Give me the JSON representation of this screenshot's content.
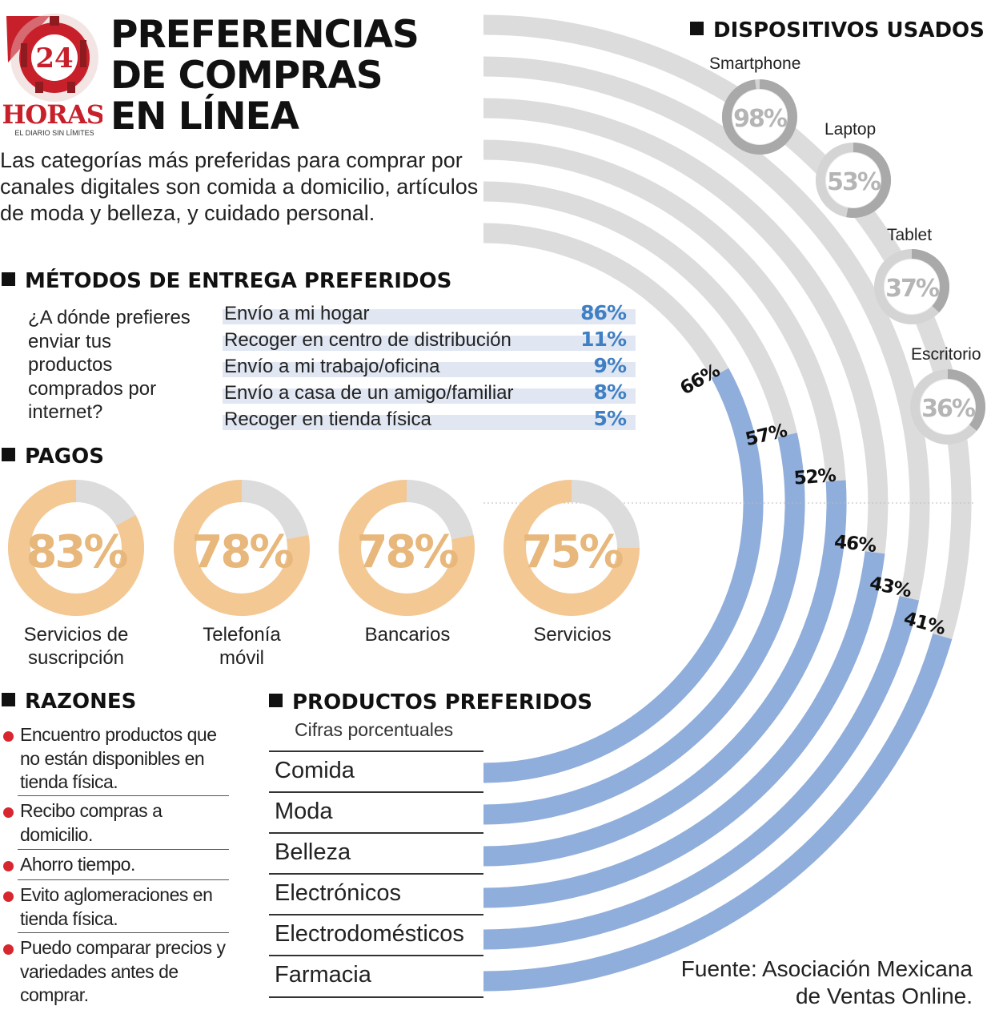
{
  "logo": {
    "number": "24",
    "name": "HORAS",
    "tagline": "EL DIARIO SIN LÍMITES"
  },
  "title": {
    "line1": "PREFERENCIAS",
    "line2": "DE COMPRAS",
    "line3": "EN LÍNEA"
  },
  "intro": "Las categorías más preferidas para comprar por canales digitales son comida a domicilio, artículos de moda y belleza, y cuidado personal.",
  "delivery": {
    "heading": "MÉTODOS DE ENTREGA PREFERIDOS",
    "question": "¿A dónde prefieres enviar tus productos comprados por internet?",
    "items": [
      {
        "label": "Envío a mi hogar",
        "value": "86%"
      },
      {
        "label": "Recoger en centro de distribución",
        "value": "11%"
      },
      {
        "label": "Envío a mi trabajo/oficina",
        "value": "9%"
      },
      {
        "label": "Envío a casa de un amigo/familiar",
        "value": "8%"
      },
      {
        "label": "Recoger en tienda física",
        "value": "5%"
      }
    ]
  },
  "payments": {
    "heading": "PAGOS",
    "items": [
      {
        "label_line1": "Servicios de",
        "label_line2": "suscripción",
        "text": "83%",
        "value": 83
      },
      {
        "label_line1": "Telefonía",
        "label_line2": "móvil",
        "text": "78%",
        "value": 78
      },
      {
        "label_line1": "Bancarios",
        "label_line2": "",
        "text": "78%",
        "value": 78
      },
      {
        "label_line1": "Servicios",
        "label_line2": "",
        "text": "75%",
        "value": 75
      }
    ]
  },
  "reasons": {
    "heading": "RAZONES",
    "items": [
      "Encuentro productos que no están disponibles en tienda física.",
      "Recibo compras a domicilio.",
      "Ahorro tiempo.",
      "Evito aglomeraciones en tienda física.",
      "Puedo comparar precios y variedades antes de comprar."
    ]
  },
  "products": {
    "heading": "PRODUCTOS PREFERIDOS",
    "subtitle": "Cifras porcentuales"
  },
  "devices": {
    "heading": "DISPOSITIVOS USADOS",
    "items": [
      {
        "label": "Smartphone",
        "text": "98%",
        "value": 98
      },
      {
        "label": "Laptop",
        "text": "53%",
        "value": 53
      },
      {
        "label": "Tablet",
        "text": "37%",
        "value": 37
      },
      {
        "label": "Escritorio",
        "text": "36%",
        "value": 36
      }
    ]
  },
  "source_line1": "Fuente: Asociación Mexicana",
  "source_line2": "de Ventas Online.",
  "colors": {
    "product_bar": "#8faedc",
    "track": "#dcdcdc",
    "payment_fill": "#f4c893",
    "payment_text": "#e7b77b",
    "delivery_value": "#3f7fc4",
    "device_ring": "#a9a9a9",
    "device_text": "#b5b5b5",
    "logo_red": "#c8202a"
  },
  "chart_data": [
    {
      "type": "bar",
      "title": "PRODUCTOS PREFERIDOS",
      "subtitle": "Cifras porcentuales",
      "categories": [
        "Comida",
        "Moda",
        "Belleza",
        "Electrónicos",
        "Electrodomésticos",
        "Farmacia"
      ],
      "values": [
        66,
        57,
        52,
        46,
        43,
        41
      ],
      "labels": [
        "66%",
        "57%",
        "52%",
        "46%",
        "43%",
        "41%"
      ],
      "ylim": [
        0,
        100
      ]
    },
    {
      "type": "bar",
      "title": "MÉTODOS DE ENTREGA PREFERIDOS",
      "categories": [
        "Envío a mi hogar",
        "Recoger en centro de distribución",
        "Envío a mi trabajo/oficina",
        "Envío a casa de un amigo/familiar",
        "Recoger en tienda física"
      ],
      "values": [
        86,
        11,
        9,
        8,
        5
      ]
    },
    {
      "type": "pie",
      "title": "PAGOS",
      "categories": [
        "Servicios de suscripción",
        "Telefonía móvil",
        "Bancarios",
        "Servicios"
      ],
      "values": [
        83,
        78,
        78,
        75
      ]
    },
    {
      "type": "pie",
      "title": "DISPOSITIVOS USADOS",
      "categories": [
        "Smartphone",
        "Laptop",
        "Tablet",
        "Escritorio"
      ],
      "values": [
        98,
        53,
        37,
        36
      ]
    }
  ]
}
